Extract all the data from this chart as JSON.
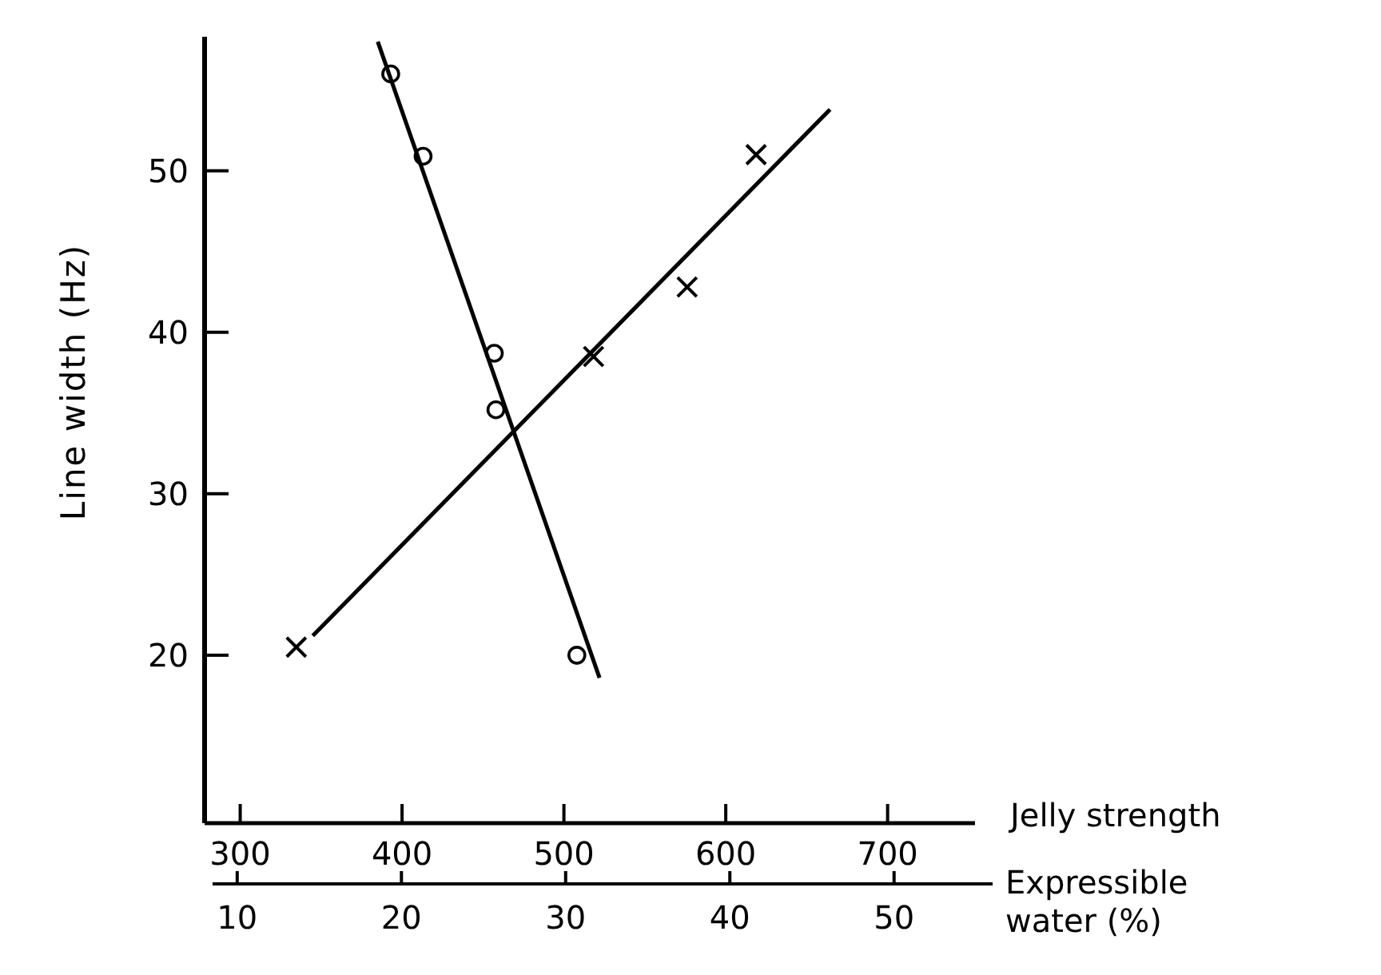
{
  "chart_data": {
    "type": "scatter",
    "ylabel": "Line width (Hz)",
    "xlabel": "Jelly strength",
    "x2label": "Expressible water (%)",
    "xlim": [
      278,
      754
    ],
    "xticks": [
      300,
      400,
      500,
      600,
      700
    ],
    "x2lim": [
      8.5,
      56
    ],
    "x2ticks": [
      10,
      20,
      30,
      40,
      50
    ],
    "ylim": [
      9.6,
      58.3
    ],
    "yticks": [
      20,
      30,
      40,
      50
    ],
    "series": [
      {
        "type": "scatter",
        "marker": "circle",
        "color": "#000000",
        "x": [
          393,
          413,
          457,
          458,
          508
        ],
        "values": [
          56,
          50.9,
          38.7,
          35.2,
          20
        ]
      },
      {
        "type": "line",
        "marker": "none",
        "color": "#000000",
        "x": [
          385,
          522
        ],
        "values": [
          58,
          18.6
        ]
      },
      {
        "type": "scatter",
        "marker": "cross",
        "axis": "x2",
        "color": "#000000",
        "x": [
          13.6,
          31.7,
          37.4,
          41.6
        ],
        "values": [
          20.5,
          38.5,
          42.8,
          51
        ]
      },
      {
        "type": "line",
        "marker": "none",
        "axis": "x2",
        "color": "#000000",
        "x": [
          14.6,
          46.1
        ],
        "values": [
          21.2,
          53.8
        ]
      }
    ]
  }
}
